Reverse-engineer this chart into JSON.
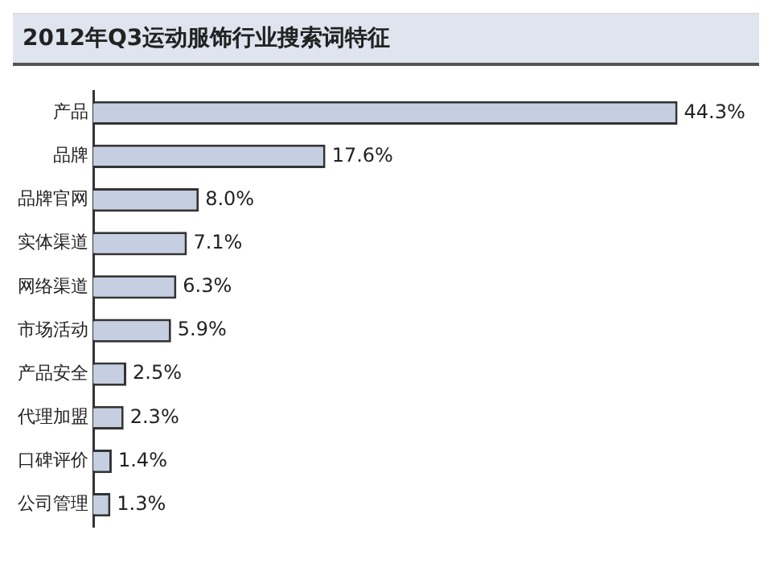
{
  "chart_data": {
    "type": "bar",
    "orientation": "horizontal",
    "title": "2012年Q3运动服饰行业搜索词特征",
    "categories": [
      "产品",
      "品牌",
      "品牌官网",
      "实体渠道",
      "网络渠道",
      "市场活动",
      "产品安全",
      "代理加盟",
      "口碑评价",
      "公司管理"
    ],
    "values": [
      44.3,
      17.6,
      8.0,
      7.1,
      6.3,
      5.9,
      2.5,
      2.3,
      1.4,
      1.3
    ],
    "value_labels": [
      "44.3%",
      "17.6%",
      "8.0%",
      "7.1%",
      "6.3%",
      "5.9%",
      "2.5%",
      "2.3%",
      "1.4%",
      "1.3%"
    ],
    "color": "#c5cfe1",
    "grid": false,
    "legend": false
  }
}
